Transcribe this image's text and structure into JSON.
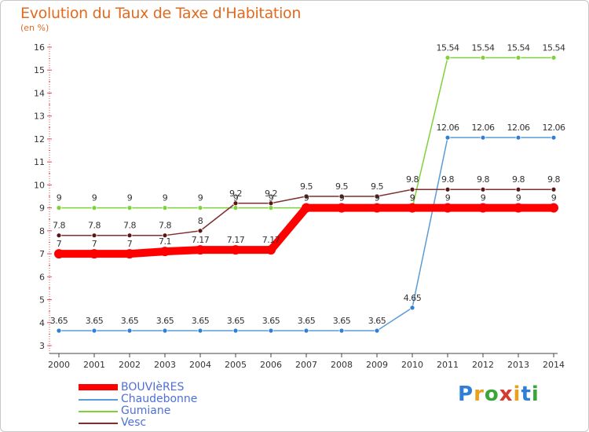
{
  "header": {
    "title": "Evolution du Taux de Taxe d'Habitation",
    "subtitle": "(en %)"
  },
  "logo": {
    "text": "Proxiti",
    "colors": [
      "#2f7fd4",
      "#e8a020",
      "#3aa63a",
      "#d43a2f",
      "#e8a020",
      "#2f7fd4",
      "#3aa63a"
    ]
  },
  "chart_data": {
    "type": "line",
    "x": [
      "2000",
      "2001",
      "2002",
      "2003",
      "2004",
      "2005",
      "2006",
      "2007",
      "2008",
      "2009",
      "2010",
      "2011",
      "2012",
      "2013",
      "2014"
    ],
    "ylim": [
      3,
      16
    ],
    "yticks": [
      3,
      4,
      5,
      6,
      7,
      8,
      9,
      10,
      11,
      12,
      13,
      14,
      15,
      16
    ],
    "grid": false,
    "legend_position": "bottom-left",
    "series": [
      {
        "name": "BOUVIèRES",
        "color": "#ff0000",
        "width": "thick",
        "values": [
          7,
          7,
          7,
          7.1,
          7.17,
          7.17,
          7.17,
          9,
          9,
          9,
          9,
          9,
          9,
          9,
          9
        ],
        "labels": [
          "7",
          "7",
          "7",
          "7.1",
          "7.17",
          "7.17",
          "7.17",
          "9",
          "9",
          "9",
          "9",
          "9",
          "9",
          "9",
          "9"
        ]
      },
      {
        "name": "Chaudebonne",
        "color": "#5b9bd5",
        "width": "thin",
        "values": [
          3.65,
          3.65,
          3.65,
          3.65,
          3.65,
          3.65,
          3.65,
          3.65,
          3.65,
          3.65,
          4.65,
          12.06,
          12.06,
          12.06,
          12.06
        ],
        "labels": [
          "3.65",
          "3.65",
          "3.65",
          "3.65",
          "3.65",
          "3.65",
          "3.65",
          "3.65",
          "3.65",
          "3.65",
          "4.65",
          "12.06",
          "12.06",
          "12.06",
          "12.06"
        ]
      },
      {
        "name": "Gumiane",
        "color": "#7fd13b",
        "width": "thin",
        "values": [
          9,
          9,
          9,
          9,
          9,
          9,
          9,
          9,
          9,
          9,
          9,
          15.54,
          15.54,
          15.54,
          15.54
        ],
        "labels": [
          "9",
          "9",
          "9",
          "9",
          "9",
          "9",
          "9",
          "9",
          "9",
          "9",
          "9",
          "15.54",
          "15.54",
          "15.54",
          "15.54"
        ]
      },
      {
        "name": "Vesc",
        "color": "#7f2f2f",
        "width": "thin",
        "values": [
          7.8,
          7.8,
          7.8,
          7.8,
          8,
          9.2,
          9.2,
          9.5,
          9.5,
          9.5,
          9.8,
          9.8,
          9.8,
          9.8,
          9.8
        ],
        "labels": [
          "7.8",
          "7.8",
          "7.8",
          "7.8",
          "8",
          "9.2",
          "9.2",
          "9.5",
          "9.5",
          "9.5",
          "9.8",
          "9.8",
          "9.8",
          "9.8",
          "9.8"
        ]
      }
    ]
  }
}
